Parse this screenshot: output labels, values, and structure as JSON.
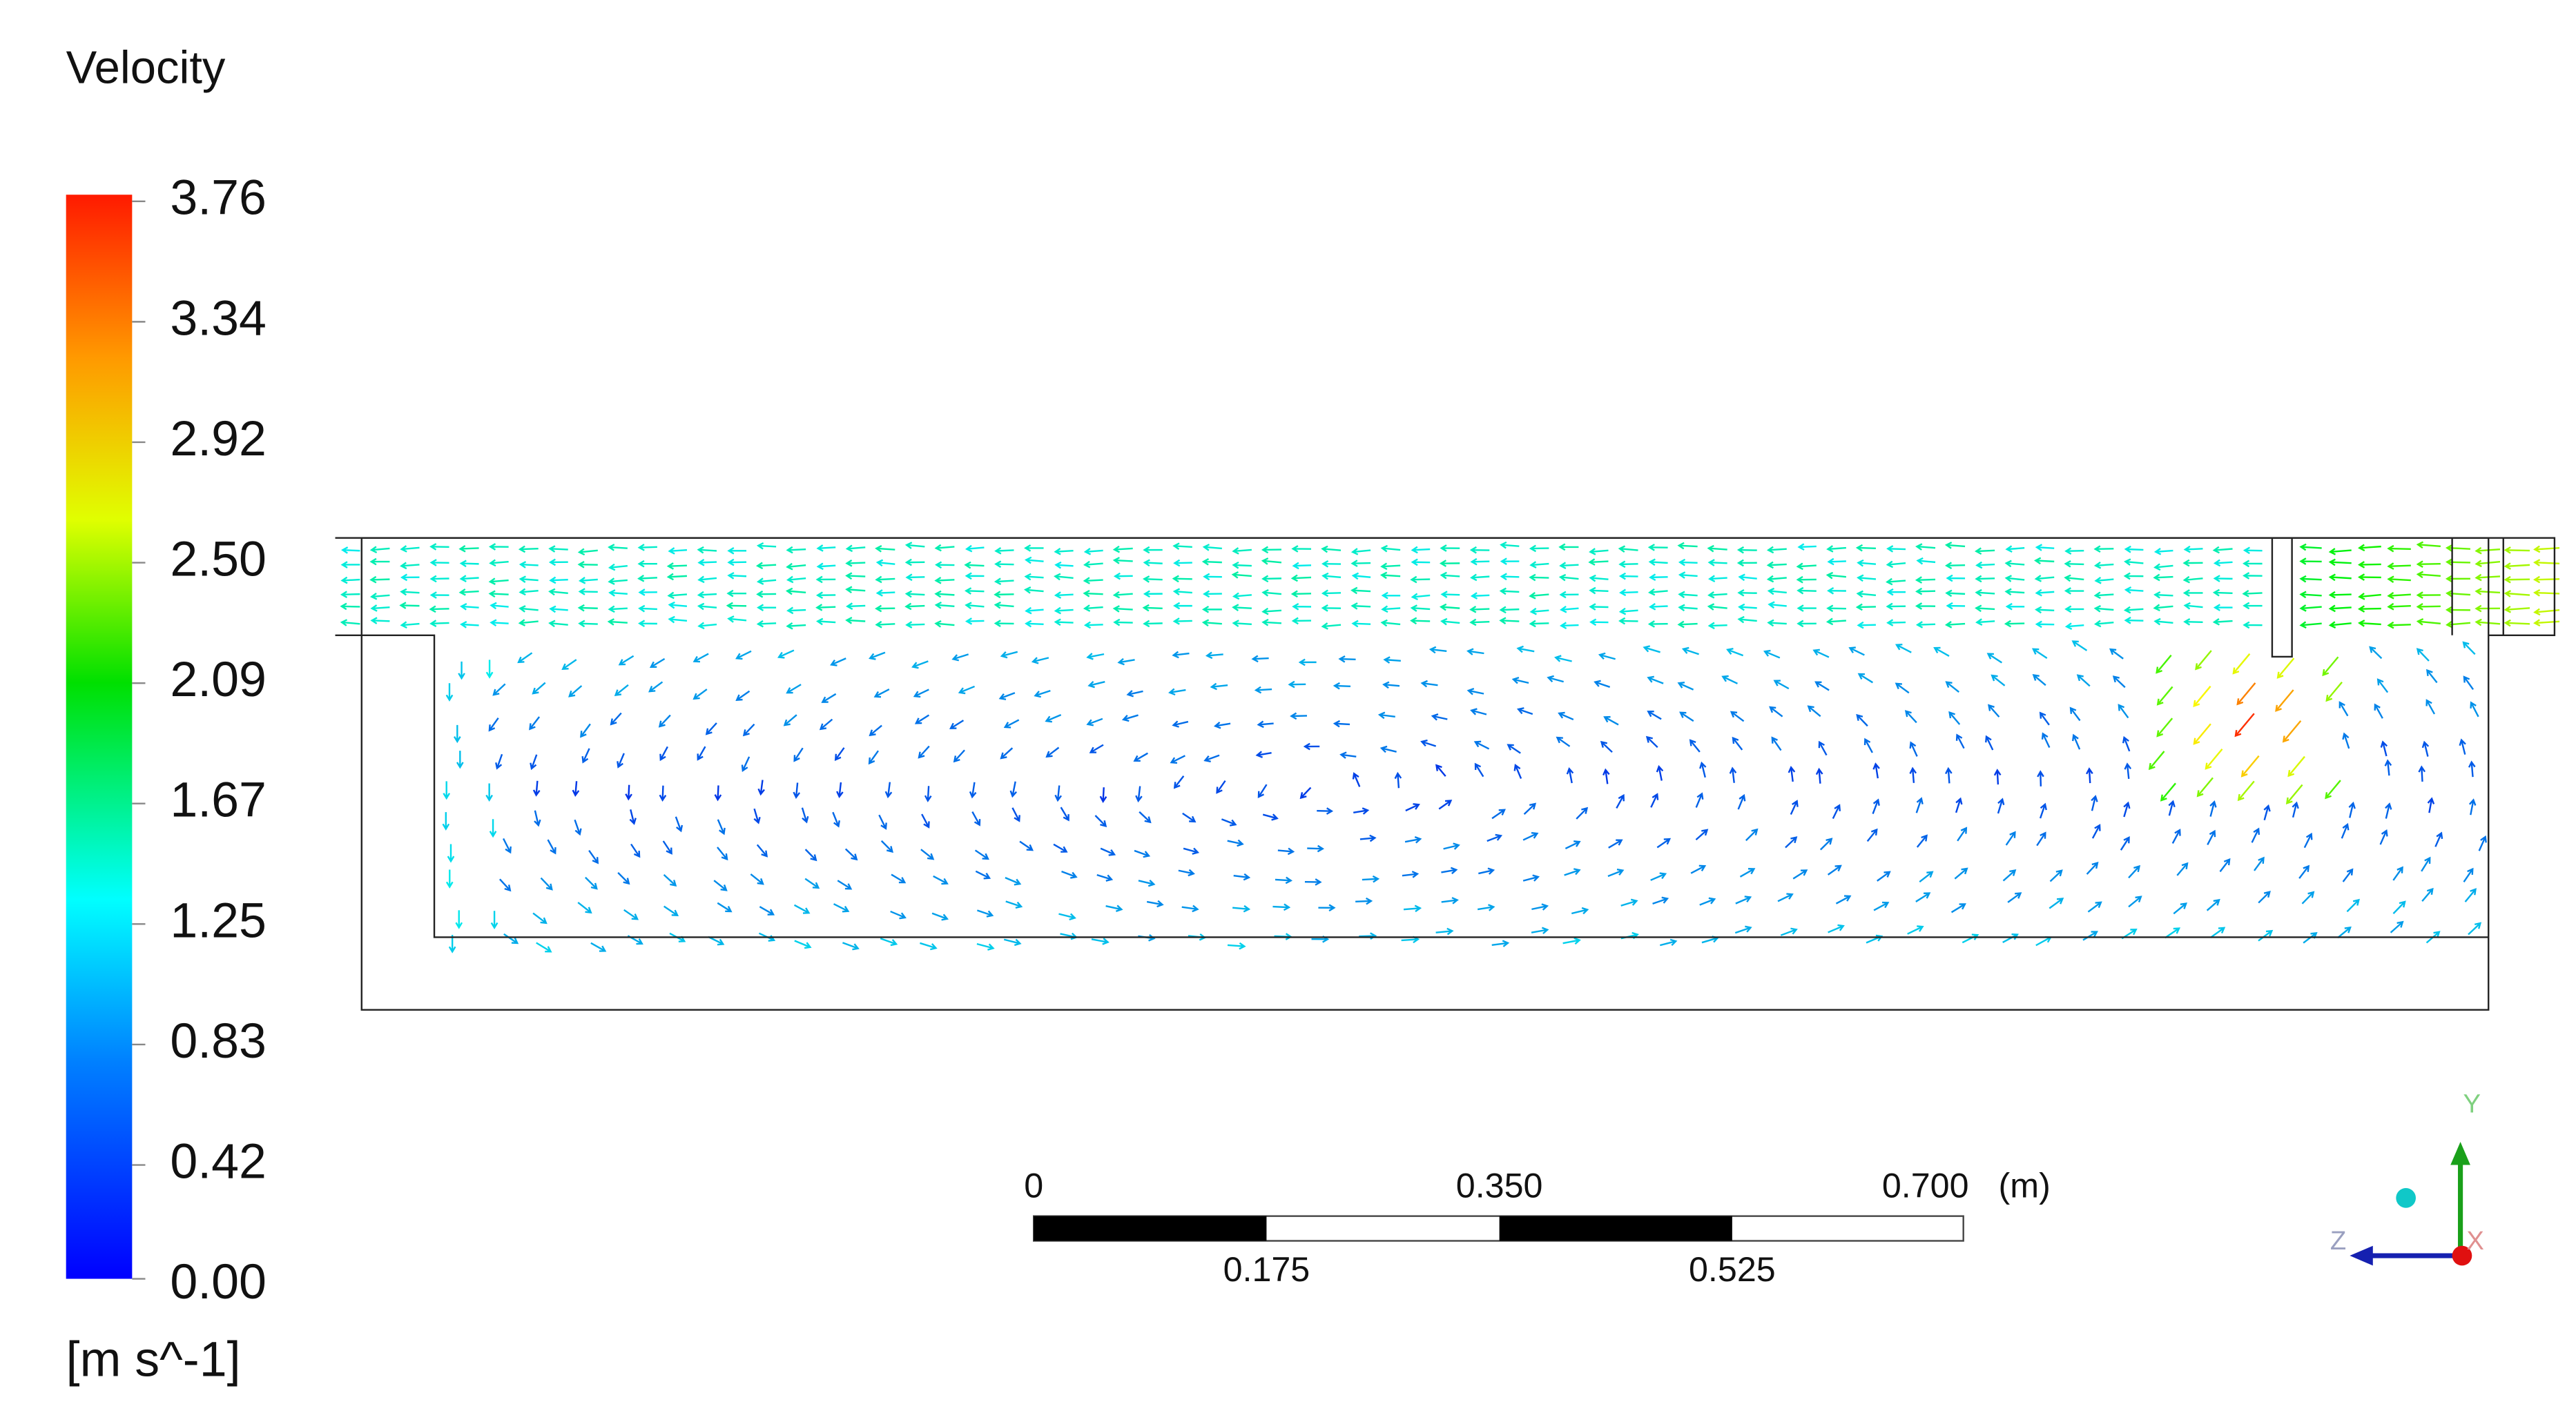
{
  "legend": {
    "title": "Velocity",
    "ticks": [
      "3.76",
      "3.34",
      "2.92",
      "2.50",
      "2.09",
      "1.67",
      "1.25",
      "0.83",
      "0.42",
      "0.00"
    ],
    "unit": "[m s^-1]"
  },
  "scale_bar": {
    "labels_top": [
      "0",
      "0.350",
      "0.700"
    ],
    "unit": "(m)",
    "labels_bottom": [
      "0.175",
      "0.525"
    ]
  },
  "axes_triad": {
    "y": "Y",
    "z": "Z",
    "x": "X"
  }
}
